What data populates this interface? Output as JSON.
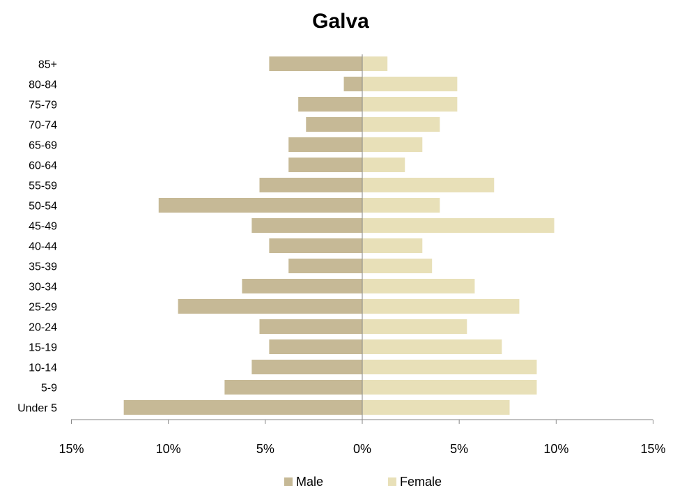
{
  "chart_data": {
    "type": "bar",
    "orientation": "horizontal",
    "title": "Galva",
    "categories": [
      "Under 5",
      "5-9",
      "10-14",
      "15-19",
      "20-24",
      "25-29",
      "30-34",
      "35-39",
      "40-44",
      "45-49",
      "50-54",
      "55-59",
      "60-64",
      "65-69",
      "70-74",
      "75-79",
      "80-84",
      "85+"
    ],
    "series": [
      {
        "name": "Male",
        "color": "#c6b996",
        "values": [
          12.3,
          7.1,
          5.7,
          4.8,
          5.3,
          9.5,
          6.2,
          3.8,
          4.8,
          5.7,
          10.5,
          5.3,
          3.8,
          3.8,
          2.9,
          3.3,
          0.95,
          4.8
        ]
      },
      {
        "name": "Female",
        "color": "#e8e0b8",
        "values": [
          7.6,
          9.0,
          9.0,
          7.2,
          5.4,
          8.1,
          5.8,
          3.6,
          3.1,
          9.9,
          4.0,
          6.8,
          2.2,
          3.1,
          4.0,
          4.9,
          4.9,
          1.3
        ]
      }
    ],
    "xlim": [
      -15,
      15
    ],
    "xticks": [
      -15,
      -10,
      -5,
      0,
      5,
      10,
      15
    ],
    "xtick_labels": [
      "15%",
      "10%",
      "5%",
      "0%",
      "5%",
      "10%",
      "15%"
    ],
    "xlabel": "",
    "ylabel": "",
    "grid": false,
    "legend_position": "bottom"
  }
}
